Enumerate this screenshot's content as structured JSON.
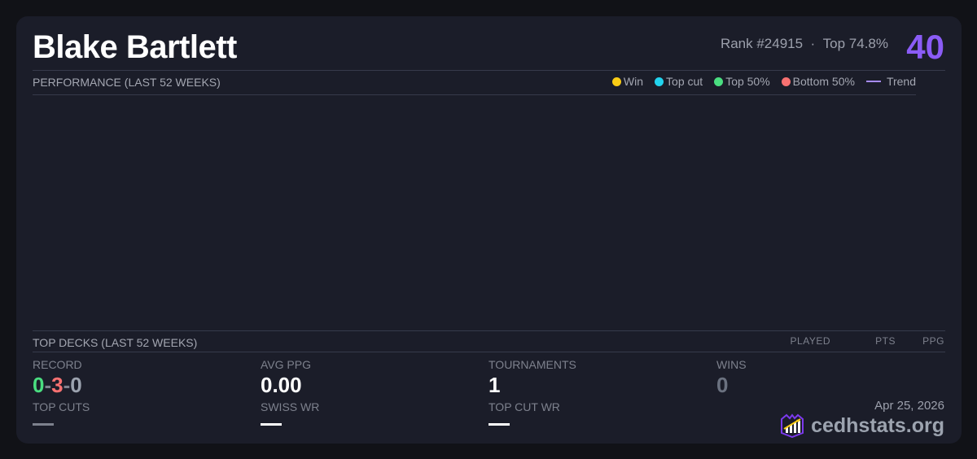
{
  "player": {
    "name": "Blake Bartlett",
    "rank": "Rank #24915",
    "separator": "·",
    "top_pct": "Top 74.8%",
    "score": "40"
  },
  "performance": {
    "title": "PERFORMANCE (LAST 52 WEEKS)",
    "legend": [
      {
        "label": "Win",
        "color": "#facc15"
      },
      {
        "label": "Top cut",
        "color": "#22d3ee"
      },
      {
        "label": "Top 50%",
        "color": "#4ade80"
      },
      {
        "label": "Bottom 50%",
        "color": "#f87171"
      },
      {
        "label": "Trend",
        "color": "#a78bfa"
      }
    ]
  },
  "top_decks": {
    "title": "TOP DECKS (LAST 52 WEEKS)",
    "columns": [
      "PLAYED",
      "PTS",
      "PPG"
    ]
  },
  "stats": {
    "record": {
      "label": "RECORD",
      "wins": "0",
      "losses": "3",
      "draws": "0",
      "sep": "-"
    },
    "avg_ppg": {
      "label": "AVG PPG",
      "value": "0.00"
    },
    "tournaments": {
      "label": "TOURNAMENTS",
      "value": "1"
    },
    "wins": {
      "label": "WINS",
      "value": "0"
    },
    "top_cuts": {
      "label": "TOP CUTS",
      "value": "—"
    },
    "swiss_wr": {
      "label": "SWISS WR",
      "value": "—"
    },
    "top_cut_wr": {
      "label": "TOP CUT WR",
      "value": "—"
    }
  },
  "footer": {
    "date": "Apr 25, 2026",
    "brand": "cedhstats.org",
    "logo_icon": "chart-shield-logo"
  }
}
